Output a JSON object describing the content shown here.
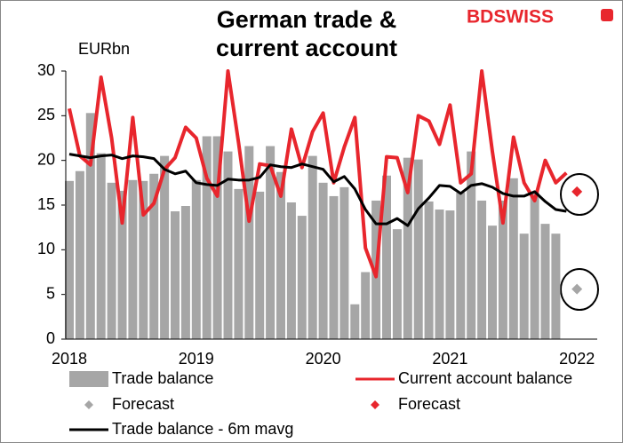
{
  "chart_data": {
    "type": "combo",
    "title": "German trade & current account",
    "brand": "BDSWISS",
    "y_label": "EURbn",
    "categories": [
      "2018",
      null,
      null,
      null,
      null,
      null,
      null,
      null,
      null,
      null,
      null,
      null,
      "2019",
      null,
      null,
      null,
      null,
      null,
      null,
      null,
      null,
      null,
      null,
      null,
      "2020",
      null,
      null,
      null,
      null,
      null,
      null,
      null,
      null,
      null,
      null,
      null,
      "2021",
      null,
      null,
      null,
      null,
      null,
      null,
      null,
      null,
      null,
      null,
      null,
      "2022"
    ],
    "ylim": [
      0,
      30
    ],
    "yticks": [
      0,
      5,
      10,
      15,
      20,
      25,
      30
    ],
    "series": [
      {
        "name": "Trade balance",
        "type": "bar",
        "color": "#a6a6a6",
        "values": [
          17.7,
          18.8,
          25.3,
          20.8,
          17.5,
          16.6,
          17.8,
          17.7,
          18.5,
          20.5,
          14.3,
          14.9,
          17.8,
          22.7,
          22.7,
          21.0,
          16.8,
          21.6,
          16.5,
          21.6,
          18.7,
          15.3,
          13.8,
          20.5,
          17.5,
          16.0,
          17.0,
          3.9,
          7.5,
          15.5,
          18.3,
          12.3,
          20.3,
          20.1,
          15.4,
          14.5,
          14.4,
          16.4,
          21.0,
          15.5,
          12.7,
          15.5,
          18.0,
          11.8,
          16.4,
          12.9,
          11.8,
          null,
          null
        ]
      },
      {
        "name": "Current account balance",
        "type": "line",
        "color": "#e8262d",
        "values": [
          25.8,
          20.5,
          19.5,
          29.3,
          22.5,
          13.0,
          24.8,
          13.9,
          15.2,
          19.0,
          20.3,
          23.7,
          22.5,
          18.0,
          16.0,
          30.0,
          22.0,
          13.2,
          19.6,
          19.4,
          16.0,
          23.5,
          19.2,
          23.2,
          25.3,
          17.5,
          21.5,
          24.8,
          10.2,
          7.0,
          20.4,
          20.3,
          16.4,
          25.0,
          24.4,
          21.8,
          26.2,
          17.5,
          18.5,
          30.0,
          21.0,
          13.0,
          22.6,
          17.5,
          15.5,
          20.0,
          17.5,
          18.6,
          null
        ]
      },
      {
        "name": "Forecast",
        "type": "point",
        "color": "#a6a6a6",
        "values": [
          null,
          null,
          null,
          null,
          null,
          null,
          null,
          null,
          null,
          null,
          null,
          null,
          null,
          null,
          null,
          null,
          null,
          null,
          null,
          null,
          null,
          null,
          null,
          null,
          null,
          null,
          null,
          null,
          null,
          null,
          null,
          null,
          null,
          null,
          null,
          null,
          null,
          null,
          null,
          null,
          null,
          null,
          null,
          null,
          null,
          null,
          null,
          null,
          5.6
        ]
      },
      {
        "name": "Forecast",
        "type": "point",
        "color": "#e8262d",
        "values": [
          null,
          null,
          null,
          null,
          null,
          null,
          null,
          null,
          null,
          null,
          null,
          null,
          null,
          null,
          null,
          null,
          null,
          null,
          null,
          null,
          null,
          null,
          null,
          null,
          null,
          null,
          null,
          null,
          null,
          null,
          null,
          null,
          null,
          null,
          null,
          null,
          null,
          null,
          null,
          null,
          null,
          null,
          null,
          null,
          null,
          null,
          null,
          null,
          16.5
        ]
      },
      {
        "name": "Trade balance - 6m mavg",
        "type": "line",
        "color": "#000000",
        "values": [
          20.7,
          20.5,
          20.3,
          20.5,
          20.6,
          20.2,
          20.5,
          20.4,
          20.2,
          19.0,
          18.5,
          18.8,
          17.5,
          17.3,
          17.2,
          17.9,
          17.8,
          17.8,
          18.1,
          19.5,
          19.3,
          19.2,
          19.6,
          19.3,
          19.0,
          17.6,
          18.2,
          16.8,
          14.5,
          12.9,
          12.9,
          13.5,
          12.7,
          14.6,
          15.8,
          17.2,
          17.1,
          16.3,
          17.2,
          17.4,
          17.0,
          16.3,
          16.0,
          16.0,
          16.5,
          15.4,
          14.5,
          14.3,
          null
        ]
      }
    ]
  }
}
